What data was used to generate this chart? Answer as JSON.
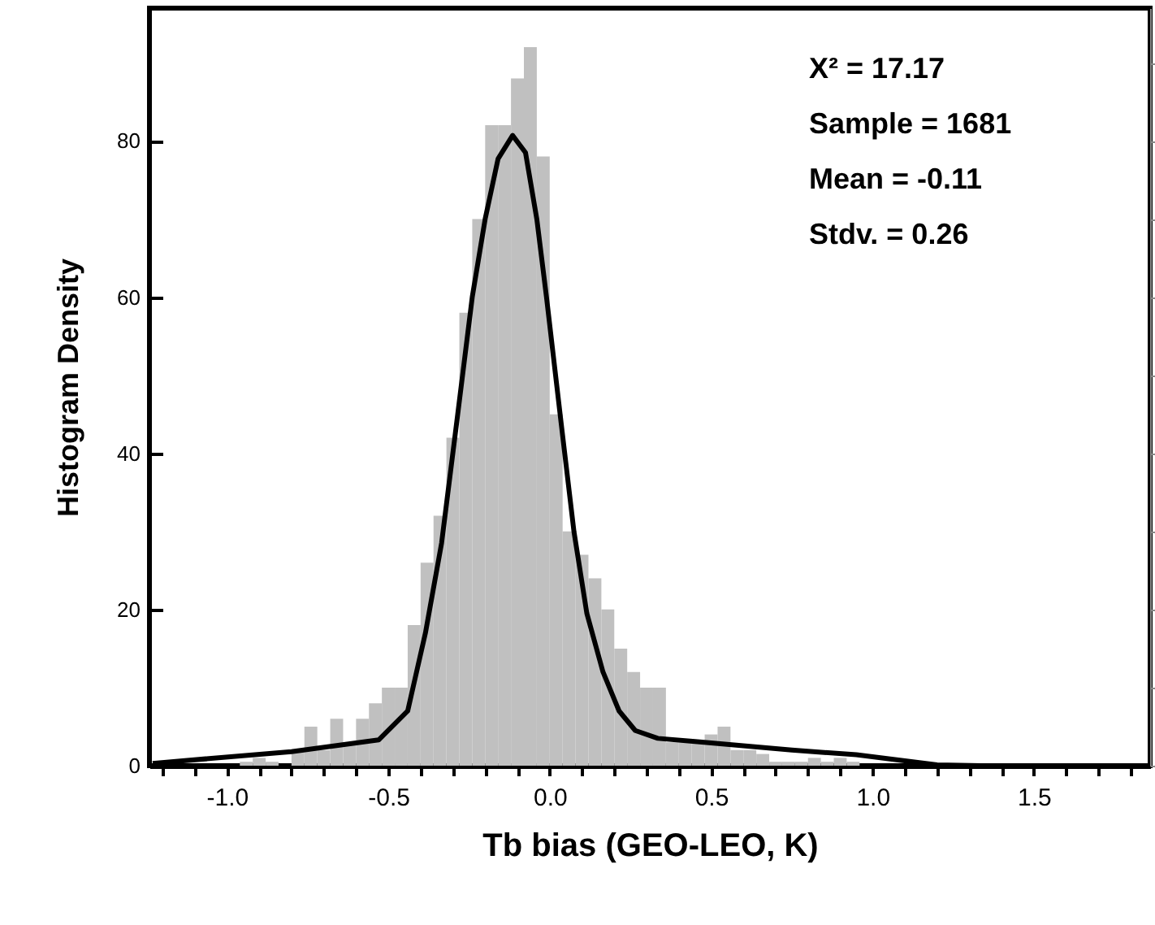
{
  "chart_data": {
    "type": "histogram",
    "xlabel": "Tb bias (GEO-LEO, K)",
    "ylabel": "Histogram Density",
    "bins": [
      -1.0,
      -0.96,
      -0.92,
      -0.88,
      -0.84,
      -0.8,
      -0.76,
      -0.72,
      -0.68,
      -0.64,
      -0.6,
      -0.56,
      -0.52,
      -0.48,
      -0.44,
      -0.4,
      -0.36,
      -0.32,
      -0.28,
      -0.24,
      -0.2,
      -0.16,
      -0.12,
      -0.08,
      -0.04,
      0.0,
      0.04,
      0.08,
      0.12,
      0.16,
      0.2,
      0.24,
      0.28,
      0.32,
      0.36,
      0.4,
      0.44,
      0.48,
      0.52,
      0.56,
      0.6,
      0.64,
      0.68,
      0.72,
      0.76,
      0.8,
      0.84,
      0.88,
      0.92,
      0.96,
      1.0
    ],
    "values": [
      0,
      0.5,
      1,
      0.5,
      0,
      2,
      5,
      2,
      6,
      3,
      6,
      8,
      10,
      10,
      18,
      26,
      32,
      42,
      58,
      70,
      82,
      82,
      88,
      92,
      78,
      45,
      30,
      27,
      24,
      20,
      15,
      12,
      10,
      10,
      3,
      3,
      3,
      4,
      5,
      2,
      2,
      1.5,
      0.5,
      0.5,
      0.5,
      1,
      0.5,
      1,
      0.5,
      0
    ],
    "color": "#c0c0c0",
    "series": [
      {
        "type": "line",
        "color": "#000000",
        "x": [
          -1.23,
          -0.8,
          -0.53,
          -0.44,
          -0.385,
          -0.335,
          -0.285,
          -0.24,
          -0.2,
          -0.16,
          -0.115,
          -0.075,
          -0.04,
          -0.01,
          0.035,
          0.075,
          0.115,
          0.165,
          0.215,
          0.265,
          0.335,
          0.45,
          0.75,
          0.95,
          1.2,
          1.335,
          1.85
        ],
        "values": [
          0.3,
          1.8,
          3.3,
          7,
          17,
          28.5,
          45,
          60,
          70,
          77.7,
          80.7,
          78.5,
          70,
          60,
          44,
          30,
          19.5,
          12,
          7,
          4.5,
          3.5,
          3.1,
          2,
          1.4,
          0.1,
          0,
          0
        ]
      }
    ],
    "xlim": [
      -1.24,
      1.86
    ],
    "xticks": [
      {
        "value": -1.2,
        "label": null
      },
      {
        "value": -1.1,
        "label": null
      },
      {
        "value": -1,
        "label": "-1.0"
      },
      {
        "value": -0.9,
        "label": null
      },
      {
        "value": -0.8,
        "label": null
      },
      {
        "value": -0.7,
        "label": null
      },
      {
        "value": -0.6,
        "label": null
      },
      {
        "value": -0.5,
        "label": "-0.5"
      },
      {
        "value": -0.4,
        "label": null
      },
      {
        "value": -0.3,
        "label": null
      },
      {
        "value": -0.2,
        "label": null
      },
      {
        "value": -0.1,
        "label": null
      },
      {
        "value": 0,
        "label": "0.0"
      },
      {
        "value": 0.1,
        "label": null
      },
      {
        "value": 0.2,
        "label": null
      },
      {
        "value": 0.3,
        "label": null
      },
      {
        "value": 0.4,
        "label": null
      },
      {
        "value": 0.5,
        "label": "0.5"
      },
      {
        "value": 0.6,
        "label": null
      },
      {
        "value": 0.7,
        "label": null
      },
      {
        "value": 0.8,
        "label": null
      },
      {
        "value": 0.9,
        "label": null
      },
      {
        "value": 1,
        "label": "1.0"
      },
      {
        "value": 1.1,
        "label": null
      },
      {
        "value": 1.2,
        "label": null
      },
      {
        "value": 1.3,
        "label": null
      },
      {
        "value": 1.4,
        "label": null
      },
      {
        "value": 1.5,
        "label": "1.5"
      },
      {
        "value": 1.6,
        "label": null
      },
      {
        "value": 1.7,
        "label": null
      },
      {
        "value": 1.8,
        "label": null
      }
    ],
    "ylim": [
      0,
      97
    ],
    "yticks": [
      0,
      20,
      40,
      60,
      80
    ],
    "annotations": [
      "X² = 17.17",
      "Sample = 1681",
      "Mean = -0.11",
      "Stdv. = 0.26"
    ]
  }
}
